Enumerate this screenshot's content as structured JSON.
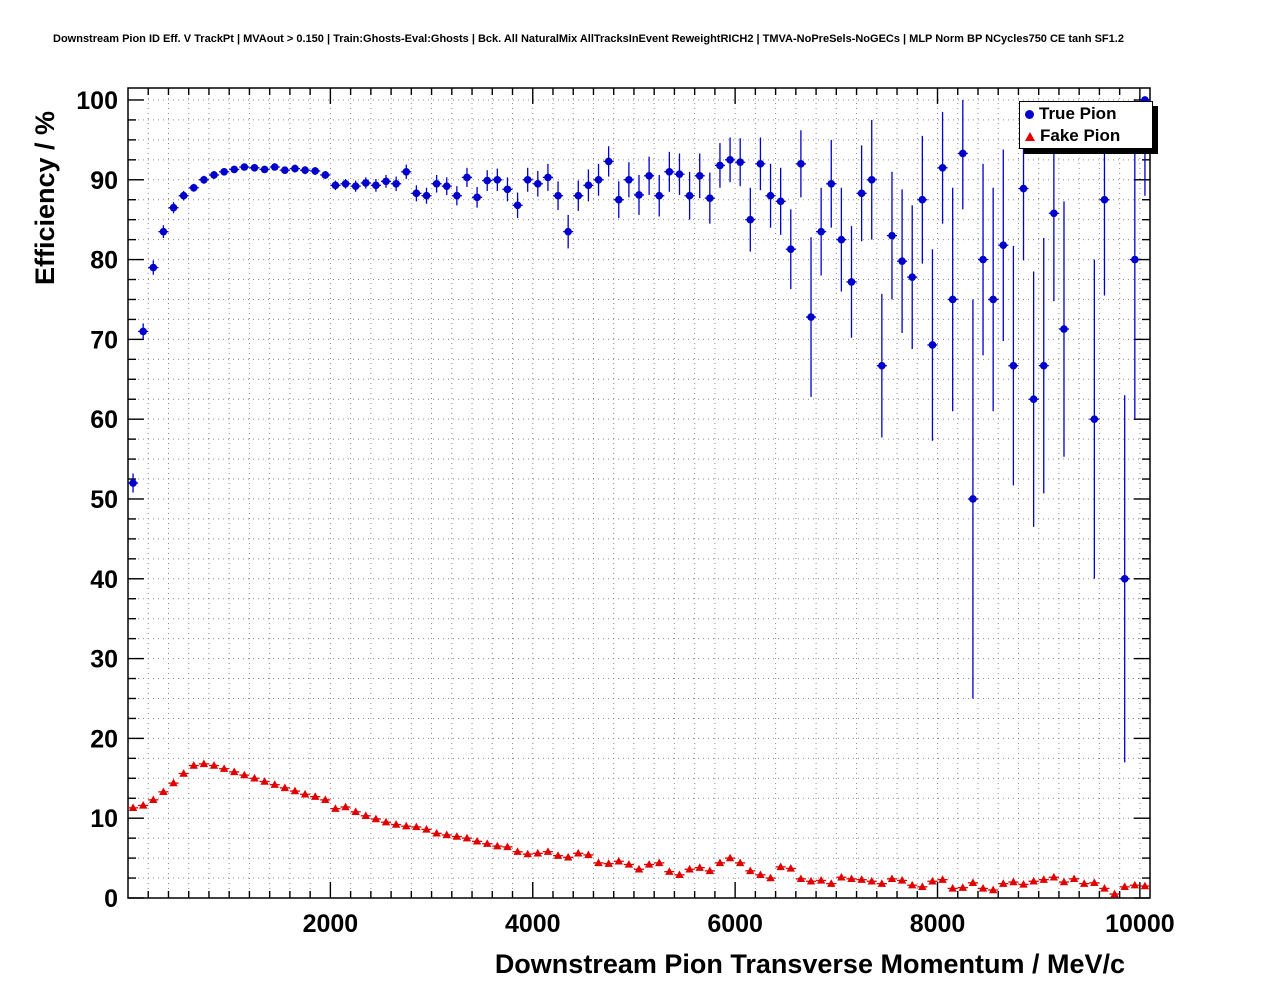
{
  "chart_data": {
    "type": "scatter",
    "title": "Downstream Pion ID Eff. V TrackPt | MVAout > 0.150 | Train:Ghosts-Eval:Ghosts | Bck. All NaturalMix AllTracksInEvent ReweightRICH2 | TMVA-NoPreSels-NoGECs | MLP Norm BP NCycles750 CE tanh SF1.2",
    "xlabel": "Downstream Pion Transverse Momentum / MeV/c",
    "ylabel": "Efficiency / %",
    "xlim": [
      0,
      10100
    ],
    "ylim": [
      0,
      101.5
    ],
    "x_ticks": [
      2000,
      4000,
      6000,
      8000,
      10000
    ],
    "y_ticks": [
      0,
      10,
      20,
      30,
      40,
      50,
      60,
      70,
      80,
      90,
      100
    ],
    "x_minor_step": 200,
    "y_minor_step": 2.5,
    "x_grid_step": 200,
    "y_grid_step": 2.5,
    "grid": true,
    "bin_half_width": 50,
    "grid_color": "#8a8a8a",
    "legend": {
      "position": "top-right",
      "entries": [
        {
          "label": "True Pion",
          "color": "#0000cc",
          "marker": "circle"
        },
        {
          "label": "Fake Pion",
          "color": "#e00000",
          "marker": "triangle-up"
        }
      ]
    },
    "series": [
      {
        "name": "True Pion",
        "color": "#0000cc",
        "marker": "circle",
        "points": [
          [
            50,
            52,
            1.2
          ],
          [
            150,
            71,
            1
          ],
          [
            250,
            79,
            0.9
          ],
          [
            350,
            83.5,
            0.8
          ],
          [
            450,
            86.5,
            0.7
          ],
          [
            550,
            88,
            0.6
          ],
          [
            650,
            89,
            0.5
          ],
          [
            750,
            90,
            0.5
          ],
          [
            850,
            90.6,
            0.5
          ],
          [
            950,
            91,
            0.4
          ],
          [
            1050,
            91.3,
            0.4
          ],
          [
            1150,
            91.6,
            0.4
          ],
          [
            1250,
            91.5,
            0.4
          ],
          [
            1350,
            91.3,
            0.4
          ],
          [
            1450,
            91.6,
            0.4
          ],
          [
            1550,
            91.2,
            0.4
          ],
          [
            1650,
            91.4,
            0.5
          ],
          [
            1750,
            91.2,
            0.5
          ],
          [
            1850,
            91.1,
            0.5
          ],
          [
            1950,
            90.6,
            0.5
          ],
          [
            2050,
            89.3,
            0.6
          ],
          [
            2150,
            89.5,
            0.6
          ],
          [
            2250,
            89.2,
            0.7
          ],
          [
            2350,
            89.6,
            0.7
          ],
          [
            2450,
            89.3,
            0.8
          ],
          [
            2550,
            89.8,
            0.8
          ],
          [
            2650,
            89.5,
            0.9
          ],
          [
            2750,
            91,
            0.9
          ],
          [
            2850,
            88.3,
            1
          ],
          [
            2950,
            88,
            1
          ],
          [
            3050,
            89.5,
            1.1
          ],
          [
            3150,
            89.2,
            1.1
          ],
          [
            3250,
            88,
            1.2
          ],
          [
            3350,
            90.3,
            1.2
          ],
          [
            3450,
            87.8,
            1.3
          ],
          [
            3550,
            89.9,
            1.3
          ],
          [
            3650,
            90,
            1.4
          ],
          [
            3750,
            88.8,
            1.5
          ],
          [
            3850,
            86.8,
            1.6
          ],
          [
            3950,
            90,
            1.5
          ],
          [
            4050,
            89.5,
            1.6
          ],
          [
            4150,
            90.3,
            1.7
          ],
          [
            4250,
            88,
            1.8
          ],
          [
            4350,
            83.5,
            2.1
          ],
          [
            4450,
            88,
            1.9
          ],
          [
            4550,
            89.3,
            2
          ],
          [
            4650,
            90,
            2
          ],
          [
            4750,
            92.3,
            1.9
          ],
          [
            4850,
            87.5,
            2.3
          ],
          [
            4950,
            90,
            2.2
          ],
          [
            5050,
            88.1,
            2.5
          ],
          [
            5150,
            90.5,
            2.4
          ],
          [
            5250,
            88,
            2.6
          ],
          [
            5350,
            91,
            2.5
          ],
          [
            5450,
            90.7,
            2.6
          ],
          [
            5550,
            88,
            3
          ],
          [
            5650,
            90.5,
            2.8
          ],
          [
            5750,
            87.7,
            3.2
          ],
          [
            5850,
            91.8,
            2.8
          ],
          [
            5950,
            92.5,
            2.8
          ],
          [
            6050,
            92.2,
            3
          ],
          [
            6150,
            85,
            4
          ],
          [
            6250,
            92,
            3.3
          ],
          [
            6350,
            88,
            4
          ],
          [
            6450,
            87.3,
            4.2
          ],
          [
            6550,
            81.3,
            5
          ],
          [
            6650,
            92,
            4.2
          ],
          [
            6750,
            72.8,
            10
          ],
          [
            6850,
            83.5,
            5.5
          ],
          [
            6950,
            89.5,
            5.5
          ],
          [
            7050,
            82.5,
            6.5
          ],
          [
            7150,
            77.2,
            7
          ],
          [
            7250,
            88.3,
            6
          ],
          [
            7350,
            90,
            7.5
          ],
          [
            7450,
            66.7,
            9
          ],
          [
            7550,
            83,
            8
          ],
          [
            7650,
            79.8,
            9
          ],
          [
            7750,
            77.8,
            9
          ],
          [
            7850,
            87.5,
            8
          ],
          [
            7950,
            69.3,
            12
          ],
          [
            8050,
            91.5,
            7
          ],
          [
            8150,
            75,
            14
          ],
          [
            8250,
            93.3,
            7
          ],
          [
            8350,
            50,
            25
          ],
          [
            8450,
            80,
            12
          ],
          [
            8550,
            75,
            14
          ],
          [
            8650,
            81.8,
            12
          ],
          [
            8750,
            66.7,
            15
          ],
          [
            8850,
            88.9,
            9
          ],
          [
            8950,
            62.5,
            16
          ],
          [
            9050,
            66.7,
            16
          ],
          [
            9150,
            85.8,
            11
          ],
          [
            9250,
            71.3,
            16
          ],
          [
            9550,
            60,
            20
          ],
          [
            9650,
            87.5,
            12
          ],
          [
            9850,
            40,
            23
          ],
          [
            9950,
            80,
            20
          ],
          [
            10050,
            100,
            12
          ]
        ]
      },
      {
        "name": "Fake Pion",
        "color": "#e00000",
        "marker": "triangle-up",
        "points": [
          [
            50,
            11.3
          ],
          [
            150,
            11.6
          ],
          [
            250,
            12.3
          ],
          [
            350,
            13.3
          ],
          [
            450,
            14.4
          ],
          [
            550,
            15.6
          ],
          [
            650,
            16.6
          ],
          [
            750,
            16.8
          ],
          [
            850,
            16.6
          ],
          [
            950,
            16.2
          ],
          [
            1050,
            15.8
          ],
          [
            1150,
            15.4
          ],
          [
            1250,
            15
          ],
          [
            1350,
            14.6
          ],
          [
            1450,
            14.2
          ],
          [
            1550,
            13.8
          ],
          [
            1650,
            13.4
          ],
          [
            1750,
            13
          ],
          [
            1850,
            12.7
          ],
          [
            1950,
            12.3
          ],
          [
            2050,
            11.2
          ],
          [
            2150,
            11.4
          ],
          [
            2250,
            10.8
          ],
          [
            2350,
            10.3
          ],
          [
            2450,
            9.9
          ],
          [
            2550,
            9.5
          ],
          [
            2650,
            9.2
          ],
          [
            2750,
            9
          ],
          [
            2850,
            8.9
          ],
          [
            2950,
            8.6
          ],
          [
            3050,
            8.1
          ],
          [
            3150,
            7.9
          ],
          [
            3250,
            7.7
          ],
          [
            3350,
            7.5
          ],
          [
            3450,
            7.1
          ],
          [
            3550,
            6.8
          ],
          [
            3650,
            6.5
          ],
          [
            3750,
            6.4
          ],
          [
            3850,
            5.8
          ],
          [
            3950,
            5.5
          ],
          [
            4050,
            5.6
          ],
          [
            4150,
            5.8
          ],
          [
            4250,
            5.3
          ],
          [
            4350,
            5.1
          ],
          [
            4450,
            5.6
          ],
          [
            4550,
            5.4
          ],
          [
            4650,
            4.4
          ],
          [
            4750,
            4.3
          ],
          [
            4850,
            4.6
          ],
          [
            4950,
            4.2
          ],
          [
            5050,
            3.6
          ],
          [
            5150,
            4.2
          ],
          [
            5250,
            4.4
          ],
          [
            5350,
            3.3
          ],
          [
            5450,
            2.9
          ],
          [
            5550,
            3.6
          ],
          [
            5650,
            3.8
          ],
          [
            5750,
            3.4
          ],
          [
            5850,
            4.4
          ],
          [
            5950,
            5
          ],
          [
            6050,
            4.4
          ],
          [
            6150,
            3.4
          ],
          [
            6250,
            2.9
          ],
          [
            6350,
            2.5
          ],
          [
            6450,
            3.9
          ],
          [
            6550,
            3.7
          ],
          [
            6650,
            2.4
          ],
          [
            6750,
            2.1
          ],
          [
            6850,
            2.2
          ],
          [
            6950,
            1.8
          ],
          [
            7050,
            2.6
          ],
          [
            7150,
            2.4
          ],
          [
            7250,
            2.3
          ],
          [
            7350,
            2.1
          ],
          [
            7450,
            1.8
          ],
          [
            7550,
            2.4
          ],
          [
            7650,
            2.2
          ],
          [
            7750,
            1.6
          ],
          [
            7850,
            1.4
          ],
          [
            7950,
            2.1
          ],
          [
            8050,
            2.3
          ],
          [
            8150,
            1.2
          ],
          [
            8250,
            1.3
          ],
          [
            8350,
            1.9
          ],
          [
            8450,
            1.2
          ],
          [
            8550,
            1
          ],
          [
            8650,
            1.8
          ],
          [
            8750,
            2
          ],
          [
            8850,
            1.7
          ],
          [
            8950,
            2.1
          ],
          [
            9050,
            2.3
          ],
          [
            9150,
            2.6
          ],
          [
            9250,
            2
          ],
          [
            9350,
            2.4
          ],
          [
            9450,
            1.8
          ],
          [
            9550,
            1.9
          ],
          [
            9650,
            1.2
          ],
          [
            9750,
            0.5
          ],
          [
            9850,
            1.4
          ],
          [
            9950,
            1.6
          ],
          [
            10050,
            1.5
          ]
        ]
      }
    ]
  }
}
